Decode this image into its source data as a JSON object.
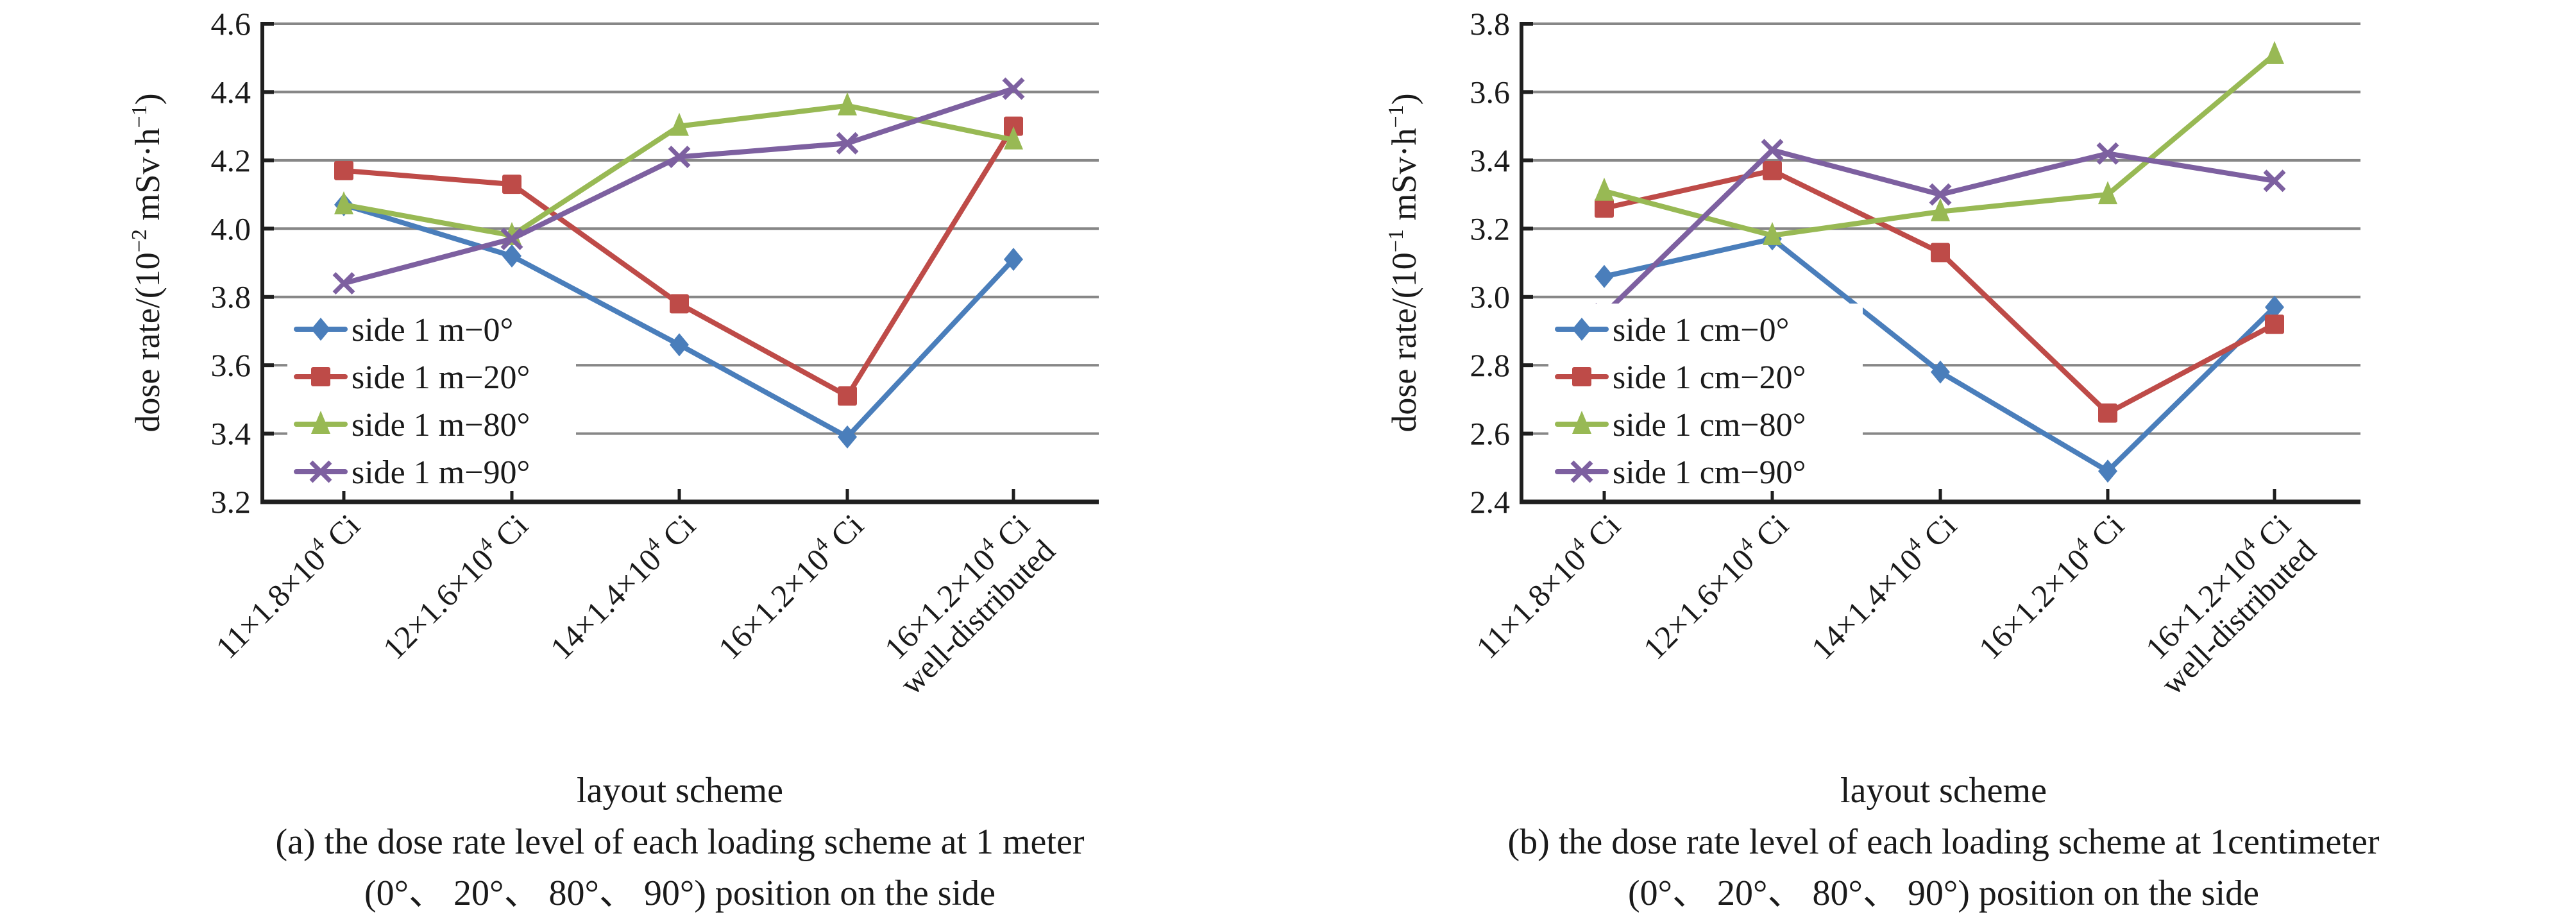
{
  "chart_data": [
    {
      "type": "line",
      "panel": "a",
      "title": "",
      "xlabel": "layout scheme",
      "ylabel": "dose rate/(10⁻² mSv·h⁻¹)",
      "ylabel_parts": {
        "pre": "dose rate/(10",
        "exp1": "−2",
        "mid": " mSv·h",
        "exp2": "−1",
        "post": ")"
      },
      "ylim": [
        3.2,
        4.6
      ],
      "yticks": [
        "3.2",
        "3.4",
        "3.6",
        "3.8",
        "4.0",
        "4.2",
        "4.4",
        "4.6"
      ],
      "grid": true,
      "legend_position": "lower-left",
      "categories": [
        {
          "line1": "11×1.8×10",
          "sup": "4",
          "line1_end": " Ci",
          "line2": ""
        },
        {
          "line1": "12×1.6×10",
          "sup": "4",
          "line1_end": " Ci",
          "line2": ""
        },
        {
          "line1": "14×1.4×10",
          "sup": "4",
          "line1_end": " Ci",
          "line2": ""
        },
        {
          "line1": "16×1.2×10",
          "sup": "4",
          "line1_end": " Ci",
          "line2": ""
        },
        {
          "line1": "16×1.2×10",
          "sup": "4",
          "line1_end": " Ci",
          "line2": "well-distributed"
        }
      ],
      "series": [
        {
          "name": "side 1 m−0°",
          "color": "#4a7ebb",
          "marker": "diamond",
          "values": [
            4.07,
            3.92,
            3.66,
            3.39,
            3.91
          ]
        },
        {
          "name": "side 1 m−20°",
          "color": "#be4b48",
          "marker": "square",
          "values": [
            4.17,
            4.13,
            3.78,
            3.51,
            4.3
          ]
        },
        {
          "name": "side 1 m−80°",
          "color": "#98b954",
          "marker": "triangle",
          "values": [
            4.07,
            3.98,
            4.3,
            4.36,
            4.26
          ]
        },
        {
          "name": "side 1 m−90°",
          "color": "#7d60a0",
          "marker": "x",
          "values": [
            3.84,
            3.97,
            4.21,
            4.25,
            4.41
          ]
        }
      ],
      "caption_line1": "(a) the dose rate level of each loading scheme at 1 meter",
      "caption_line2": "(0°、 20°、 80°、 90°) position on the side"
    },
    {
      "type": "line",
      "panel": "b",
      "title": "",
      "xlabel": "layout scheme",
      "ylabel": "dose rate/(10⁻¹ mSv·h⁻¹)",
      "ylabel_parts": {
        "pre": "dose rate/(10",
        "exp1": "−1",
        "mid": " mSv·h",
        "exp2": "−1",
        "post": ")"
      },
      "ylim": [
        2.4,
        3.8
      ],
      "yticks": [
        "2.4",
        "2.6",
        "2.8",
        "3.0",
        "3.2",
        "3.4",
        "3.6",
        "3.8"
      ],
      "grid": true,
      "legend_position": "lower-left",
      "categories": [
        {
          "line1": "11×1.8×10",
          "sup": "4",
          "line1_end": " Ci",
          "line2": ""
        },
        {
          "line1": "12×1.6×10",
          "sup": "4",
          "line1_end": " Ci",
          "line2": ""
        },
        {
          "line1": "14×1.4×10",
          "sup": "4",
          "line1_end": " Ci",
          "line2": ""
        },
        {
          "line1": "16×1.2×10",
          "sup": "4",
          "line1_end": " Ci",
          "line2": ""
        },
        {
          "line1": "16×1.2×10",
          "sup": "4",
          "line1_end": " Ci",
          "line2": "well-distributed"
        }
      ],
      "series": [
        {
          "name": "side 1 cm−0°",
          "color": "#4a7ebb",
          "marker": "diamond",
          "values": [
            3.06,
            3.17,
            2.78,
            2.49,
            2.97
          ]
        },
        {
          "name": "side 1 cm−20°",
          "color": "#be4b48",
          "marker": "square",
          "values": [
            3.26,
            3.37,
            3.13,
            2.66,
            2.92
          ]
        },
        {
          "name": "side 1 cm−80°",
          "color": "#98b954",
          "marker": "triangle",
          "values": [
            3.31,
            3.18,
            3.25,
            3.3,
            3.71
          ]
        },
        {
          "name": "side 1 cm−90°",
          "color": "#7d60a0",
          "marker": "x",
          "values": [
            2.95,
            3.43,
            3.3,
            3.42,
            3.34
          ]
        }
      ],
      "caption_line1": "(b) the dose rate level of each loading scheme at 1centimeter",
      "caption_line2": "(0°、 20°、 80°、 90°) position on the side"
    }
  ]
}
